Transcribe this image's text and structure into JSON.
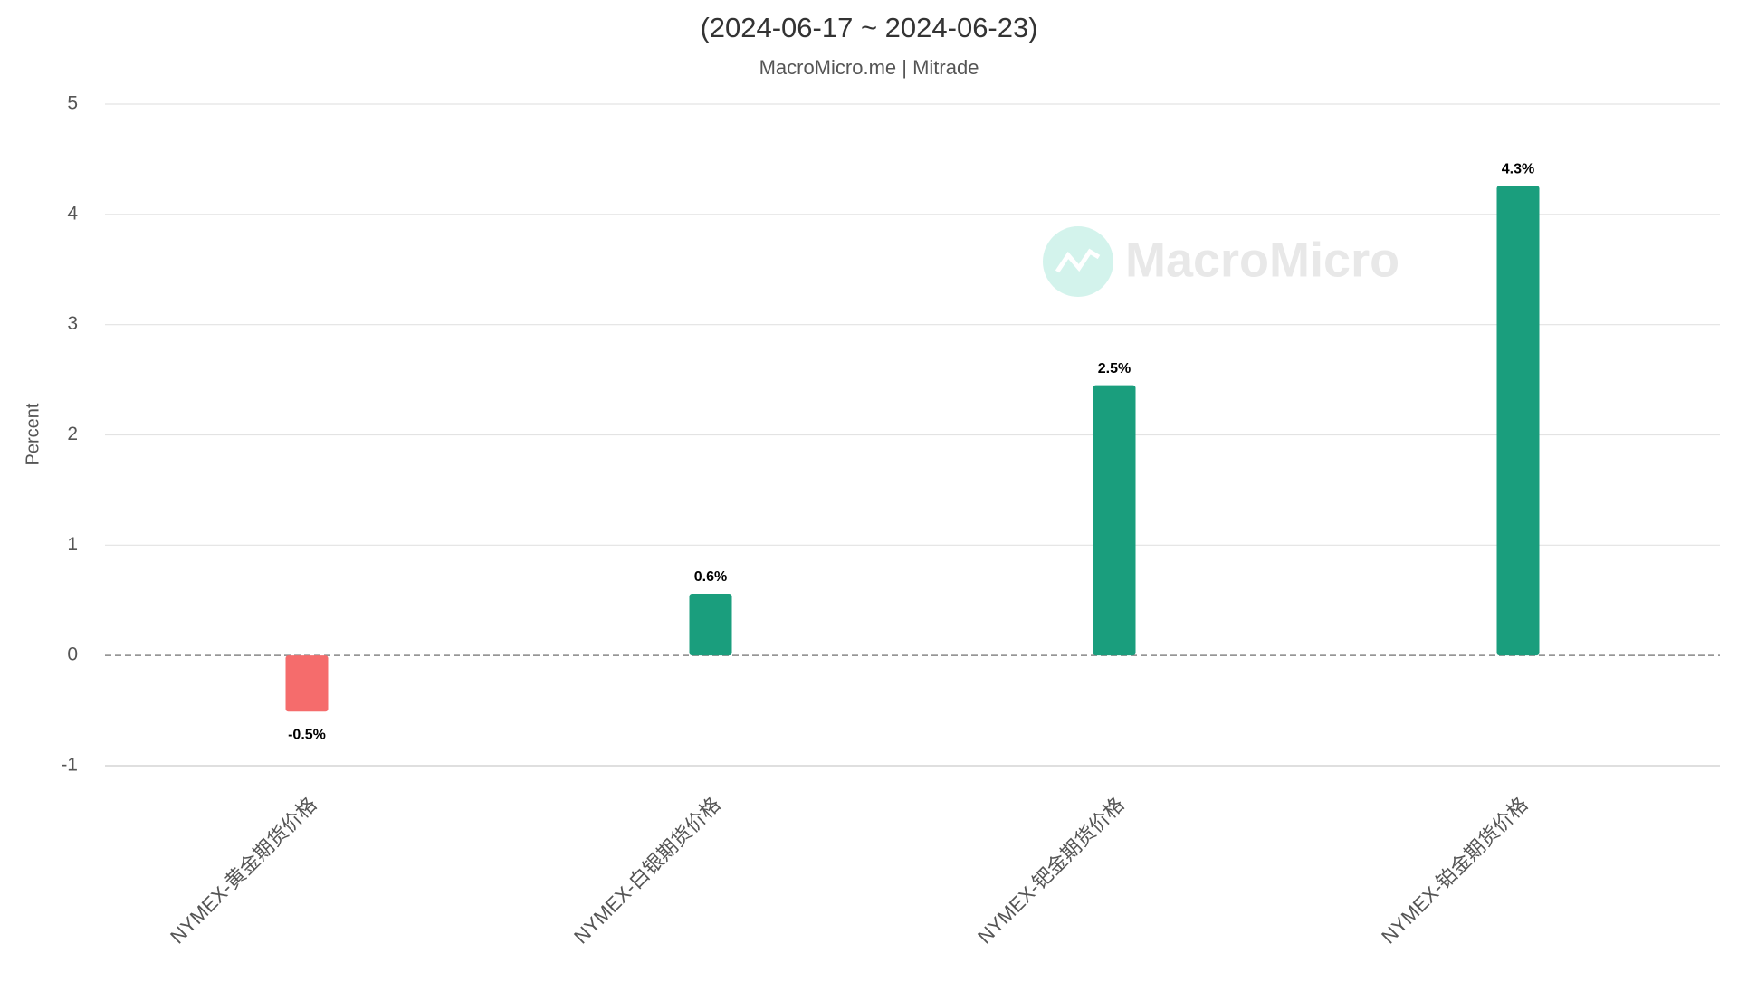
{
  "chart_data": {
    "type": "bar",
    "title": "(2024-06-17 ~ 2024-06-23)",
    "subtitle": "MacroMicro.me | Mitrade",
    "watermark": "MacroMicro",
    "y_label": "Percent",
    "categories": [
      "NYMEX-黄金期货价格",
      "NYMEX-白银期货价格",
      "NYMEX-钯金期货价格",
      "NYMEX-铂金期货价格"
    ],
    "values": [
      -0.51,
      0.56,
      2.45,
      4.26
    ],
    "value_labels": [
      "-0.5%",
      "0.6%",
      "2.5%",
      "4.3%"
    ],
    "color": "#1a9e7d",
    "negative_color": "#f56c6c",
    "ylim": [
      -1,
      5
    ],
    "yticks": [
      -1,
      0,
      1,
      2,
      3,
      4,
      5
    ],
    "grid": true
  }
}
